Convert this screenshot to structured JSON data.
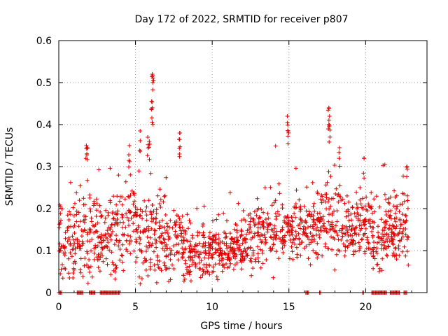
{
  "chart_data": {
    "type": "scatter",
    "title": "Day 172 of 2022, SRMTID for receiver p807",
    "xlabel": "GPS time / hours",
    "ylabel": "SRMTID / TECUs",
    "xlim": [
      0,
      24
    ],
    "ylim": [
      0,
      0.6
    ],
    "xticks": [
      0,
      5,
      10,
      15,
      20
    ],
    "xtick_labels": [
      "0",
      "5",
      "10",
      "15",
      "20"
    ],
    "yticks": [
      0,
      0.1,
      0.2,
      0.3,
      0.4,
      0.5,
      0.6
    ],
    "ytick_labels": [
      "0",
      "0.1",
      "0.2",
      "0.3",
      "0.4",
      "0.5",
      "0.6"
    ],
    "grid": true,
    "marker": "+",
    "color": "#e00000",
    "series": [
      {
        "name": "SRMTID",
        "density_profile": [
          {
            "x": 0.0,
            "median": 0.13,
            "spread": 0.06
          },
          {
            "x": 1.0,
            "median": 0.11,
            "spread": 0.06
          },
          {
            "x": 2.0,
            "median": 0.14,
            "spread": 0.07
          },
          {
            "x": 3.0,
            "median": 0.13,
            "spread": 0.05
          },
          {
            "x": 4.0,
            "median": 0.15,
            "spread": 0.07
          },
          {
            "x": 5.0,
            "median": 0.16,
            "spread": 0.08
          },
          {
            "x": 6.0,
            "median": 0.15,
            "spread": 0.08
          },
          {
            "x": 7.0,
            "median": 0.12,
            "spread": 0.06
          },
          {
            "x": 8.0,
            "median": 0.12,
            "spread": 0.06
          },
          {
            "x": 9.0,
            "median": 0.09,
            "spread": 0.04
          },
          {
            "x": 10.0,
            "median": 0.1,
            "spread": 0.04
          },
          {
            "x": 11.0,
            "median": 0.1,
            "spread": 0.03
          },
          {
            "x": 12.0,
            "median": 0.11,
            "spread": 0.04
          },
          {
            "x": 13.0,
            "median": 0.14,
            "spread": 0.05
          },
          {
            "x": 14.0,
            "median": 0.15,
            "spread": 0.05
          },
          {
            "x": 15.0,
            "median": 0.15,
            "spread": 0.05
          },
          {
            "x": 16.0,
            "median": 0.15,
            "spread": 0.05
          },
          {
            "x": 17.0,
            "median": 0.16,
            "spread": 0.06
          },
          {
            "x": 18.0,
            "median": 0.17,
            "spread": 0.06
          },
          {
            "x": 19.0,
            "median": 0.13,
            "spread": 0.05
          },
          {
            "x": 20.0,
            "median": 0.17,
            "spread": 0.05
          },
          {
            "x": 21.0,
            "median": 0.12,
            "spread": 0.05
          },
          {
            "x": 22.0,
            "median": 0.15,
            "spread": 0.05
          },
          {
            "x": 22.8,
            "median": 0.18,
            "spread": 0.06
          }
        ],
        "peaks": [
          {
            "x": 1.8,
            "y": 0.35
          },
          {
            "x": 1.85,
            "y": 0.345
          },
          {
            "x": 4.6,
            "y": 0.35
          },
          {
            "x": 5.3,
            "y": 0.385
          },
          {
            "x": 5.8,
            "y": 0.37
          },
          {
            "x": 5.9,
            "y": 0.36
          },
          {
            "x": 6.1,
            "y": 0.52
          },
          {
            "x": 6.15,
            "y": 0.505
          },
          {
            "x": 6.05,
            "y": 0.455
          },
          {
            "x": 6.1,
            "y": 0.44
          },
          {
            "x": 7.9,
            "y": 0.38
          },
          {
            "x": 7.85,
            "y": 0.365
          },
          {
            "x": 14.9,
            "y": 0.42
          },
          {
            "x": 14.95,
            "y": 0.385
          },
          {
            "x": 17.6,
            "y": 0.44
          },
          {
            "x": 17.65,
            "y": 0.42
          },
          {
            "x": 17.6,
            "y": 0.4
          },
          {
            "x": 18.3,
            "y": 0.345
          },
          {
            "x": 19.9,
            "y": 0.32
          },
          {
            "x": 22.7,
            "y": 0.3
          }
        ],
        "zero_intervals": [
          [
            0.0,
            0.2
          ],
          [
            1.2,
            1.6
          ],
          [
            2.0,
            2.4
          ],
          [
            2.7,
            4.0
          ],
          [
            16.1,
            16.3
          ],
          [
            17.0,
            17.1
          ],
          [
            19.8,
            19.9
          ],
          [
            20.4,
            21.4
          ],
          [
            21.6,
            22.2
          ],
          [
            22.5,
            22.7
          ]
        ]
      }
    ]
  }
}
